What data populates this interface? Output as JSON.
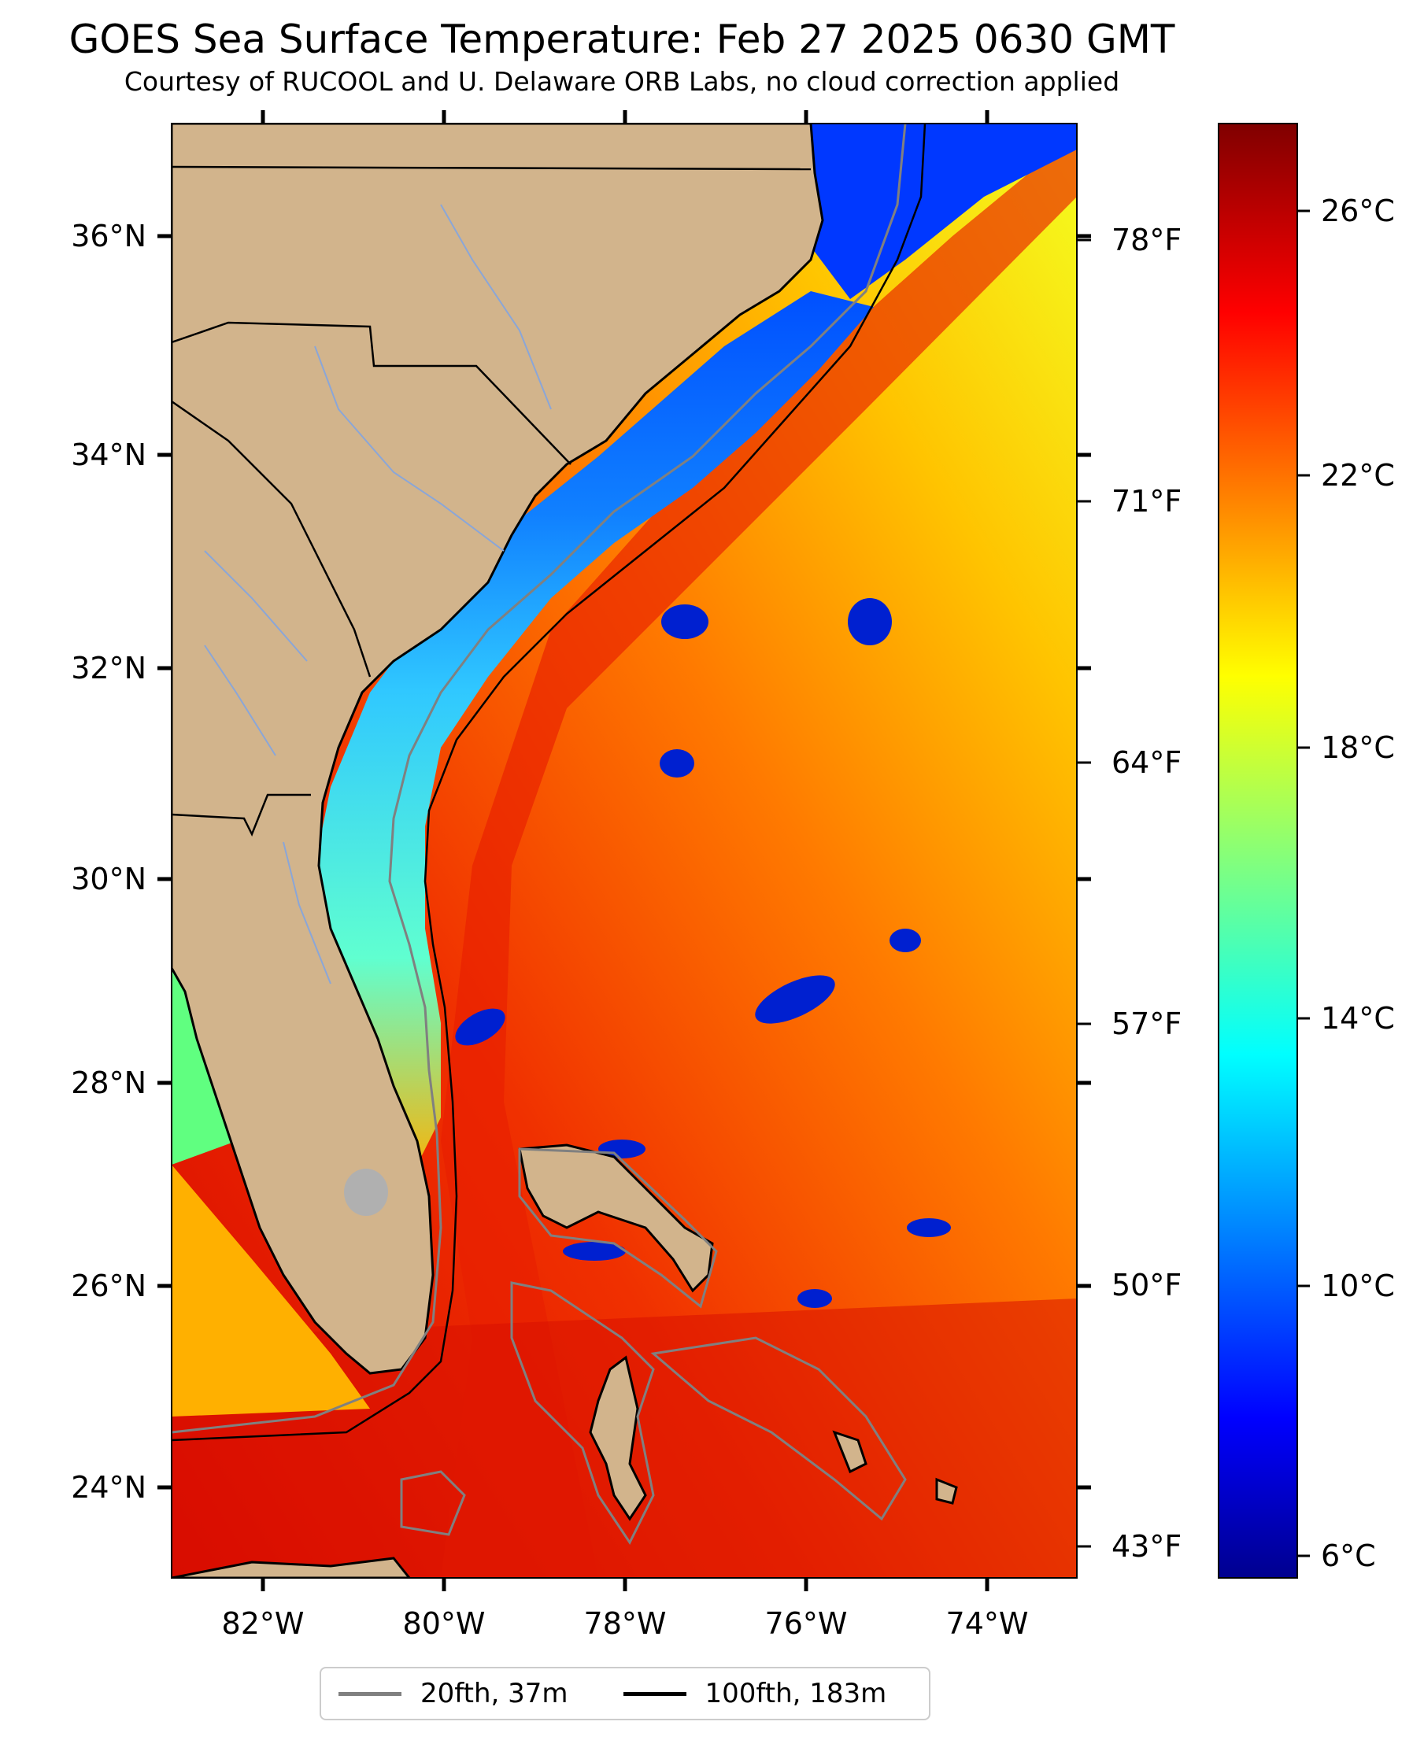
{
  "title": "GOES Sea Surface Temperature: Feb 27 2025 0630 GMT",
  "subtitle": "Courtesy of RUCOOL and U. Delaware ORB Labs, no cloud correction applied",
  "map": {
    "lat_ticks": [
      "24°N",
      "26°N",
      "28°N",
      "30°N",
      "32°N",
      "34°N",
      "36°N"
    ],
    "lon_ticks": [
      "82°W",
      "80°W",
      "78°W",
      "76°W",
      "74°W"
    ],
    "lat_range": [
      23.1,
      37.1
    ],
    "lon_range": [
      -83.0,
      -73.0
    ],
    "land_color": "#d2b48c",
    "features": [
      "sea-surface-temperature-field",
      "coastline",
      "state-borders",
      "rivers",
      "20-fathom-isobath",
      "100-fathom-isobath",
      "bahamas",
      "gulf-stream"
    ]
  },
  "fahrenheit_ticks": [
    "78°F",
    "71°F",
    "64°F",
    "57°F",
    "50°F",
    "43°F"
  ],
  "colorbar": {
    "ticks": [
      "26°C",
      "22°C",
      "18°C",
      "14°C",
      "10°C",
      "6°C"
    ],
    "colormap": "jet",
    "range_c": [
      5.5,
      27.5
    ]
  },
  "legend": [
    {
      "label": "20fth, 37m",
      "color": "#808080"
    },
    {
      "label": "100fth, 183m",
      "color": "#000000"
    }
  ],
  "colors": {
    "warm": "#e81e00",
    "cold": "#0020ff",
    "shelf": "#3ad6ff",
    "isobath_20": "#808080",
    "isobath_100": "#000000"
  }
}
